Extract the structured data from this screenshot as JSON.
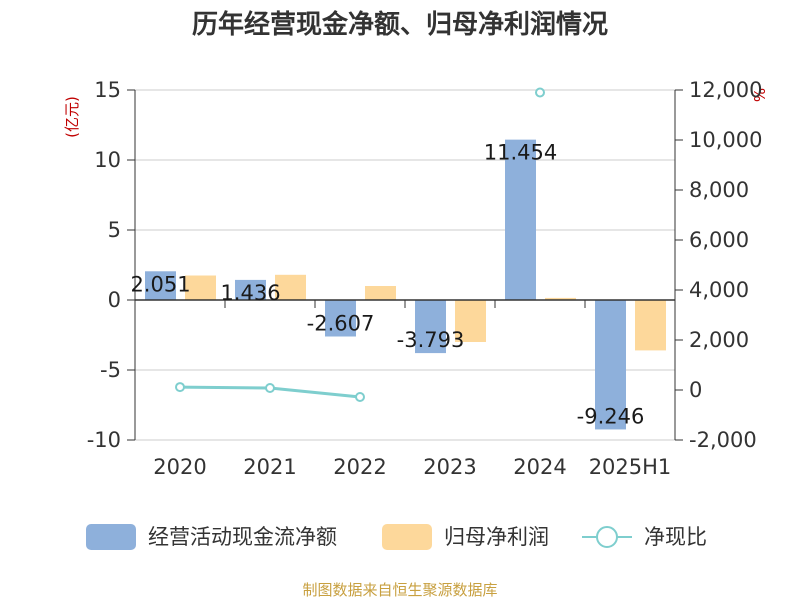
{
  "chart_data": {
    "type": "bar",
    "title": "历年经营现金净额、归母净利润情况",
    "categories": [
      "2020",
      "2021",
      "2022",
      "2023",
      "2024",
      "2025H1"
    ],
    "y_left_unit": "(亿元)",
    "y_right_unit": "%",
    "ylim_left": [
      -10,
      15
    ],
    "ylim_right": [
      -2000,
      12000
    ],
    "left_ticks": [
      "15",
      "10",
      "5",
      "0",
      "-5",
      "-10"
    ],
    "right_ticks": [
      "12,000",
      "10,000",
      "8,000",
      "6,000",
      "4,000",
      "2,000",
      "0",
      "-2,000"
    ],
    "series": [
      {
        "name": "经营活动现金流净额",
        "type": "bar",
        "axis": "left",
        "color": "#8eb0db",
        "values": [
          2.051,
          1.436,
          -2.607,
          -3.793,
          11.454,
          -9.246
        ],
        "labels": [
          "2.051",
          "1.436",
          "-2.607",
          "-3.793",
          "11.454",
          "-9.246"
        ]
      },
      {
        "name": "归母净利润",
        "type": "bar",
        "axis": "left",
        "color": "#fdd89b",
        "values": [
          1.75,
          1.8,
          1.0,
          -3.0,
          0.15,
          -3.6
        ]
      },
      {
        "name": "净现比",
        "type": "line",
        "axis": "right",
        "color": "#7ecece",
        "values": [
          117,
          80,
          -280,
          null,
          11900,
          null
        ]
      }
    ],
    "grid": true,
    "legend_position": "bottom"
  },
  "source": "制图数据来自恒生聚源数据库"
}
